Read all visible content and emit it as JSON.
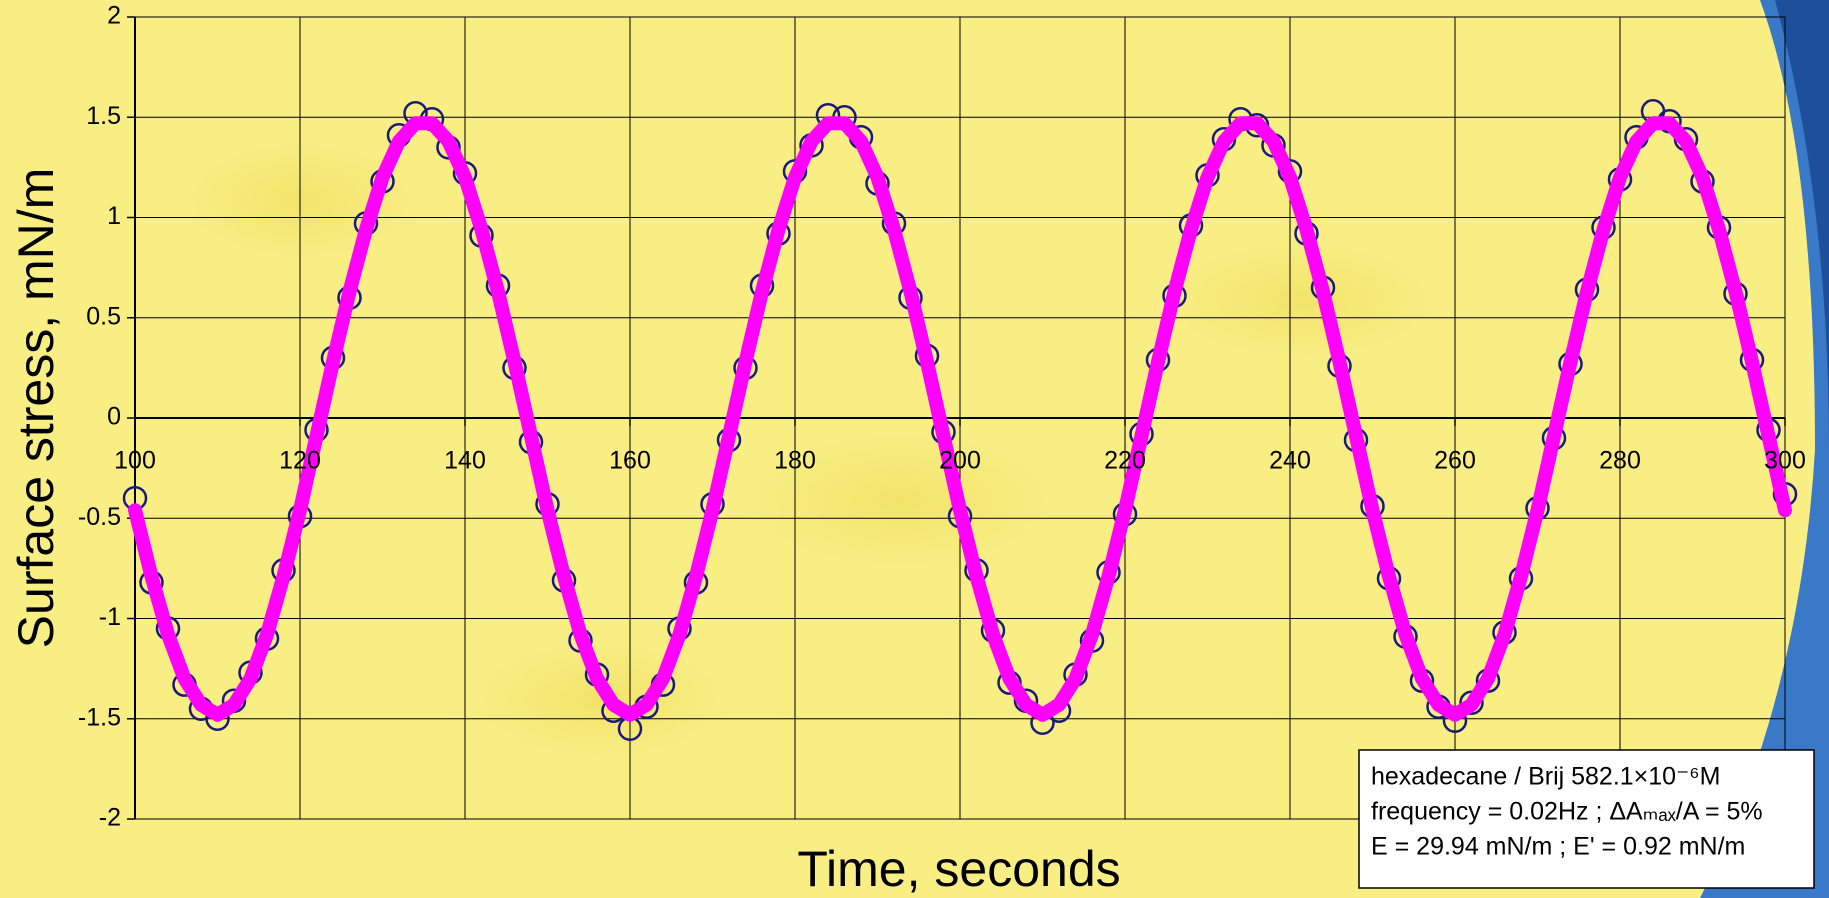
{
  "chart_data": {
    "type": "scatter",
    "x_label": "Time, seconds",
    "y_label": "Surface stress, mN/m",
    "annotations": [
      "hexadecane / Brij 582.1×10⁻⁶M",
      "frequency = 0.02Hz ; ΔAₘₐₓ/A = 5%",
      "E = 29.94 mN/m ; E' = 0.92 mN/m"
    ],
    "x": [
      100,
      102,
      104,
      106,
      108,
      110,
      112,
      114,
      116,
      118,
      120,
      122,
      124,
      126,
      128,
      130,
      132,
      134,
      136,
      138,
      140,
      142,
      144,
      146,
      148,
      150,
      152,
      154,
      156,
      158,
      160,
      162,
      164,
      166,
      168,
      170,
      172,
      174,
      176,
      178,
      180,
      182,
      184,
      186,
      188,
      190,
      192,
      194,
      196,
      198,
      200,
      202,
      204,
      206,
      208,
      210,
      212,
      214,
      216,
      218,
      220,
      222,
      224,
      226,
      228,
      230,
      232,
      234,
      236,
      238,
      240,
      242,
      244,
      246,
      248,
      250,
      252,
      254,
      256,
      258,
      260,
      262,
      264,
      266,
      268,
      270,
      272,
      274,
      276,
      278,
      280,
      282,
      284,
      286,
      288,
      290,
      292,
      294,
      296,
      298,
      300
    ],
    "series": [
      {
        "mode": "markers",
        "color": "#1a1a7a",
        "values": [
          -0.4,
          -0.82,
          -1.05,
          -1.33,
          -1.45,
          -1.5,
          -1.41,
          -1.27,
          -1.1,
          -0.76,
          -0.49,
          -0.06,
          0.3,
          0.6,
          0.97,
          1.18,
          1.41,
          1.52,
          1.49,
          1.35,
          1.22,
          0.91,
          0.66,
          0.25,
          -0.12,
          -0.43,
          -0.81,
          -1.11,
          -1.28,
          -1.46,
          -1.55,
          -1.44,
          -1.33,
          -1.05,
          -0.82,
          -0.43,
          -0.11,
          0.25,
          0.66,
          0.92,
          1.23,
          1.36,
          1.51,
          1.5,
          1.4,
          1.17,
          0.97,
          0.6,
          0.31,
          -0.07,
          -0.49,
          -0.76,
          -1.06,
          -1.32,
          -1.41,
          -1.52,
          -1.46,
          -1.28,
          -1.11,
          -0.77,
          -0.48,
          -0.08,
          0.29,
          0.61,
          0.96,
          1.21,
          1.39,
          1.49,
          1.46,
          1.36,
          1.23,
          0.92,
          0.65,
          0.26,
          -0.11,
          -0.44,
          -0.8,
          -1.09,
          -1.31,
          -1.44,
          -1.51,
          -1.42,
          -1.31,
          -1.07,
          -0.8,
          -0.45,
          -0.1,
          0.27,
          0.64,
          0.95,
          1.19,
          1.4,
          1.53,
          1.48,
          1.39,
          1.18,
          0.95,
          0.62,
          0.29,
          -0.06,
          -0.38
        ]
      },
      {
        "mode": "line",
        "color": "#ff00ff",
        "values": [
          -0.46,
          -0.79,
          -1.08,
          -1.3,
          -1.43,
          -1.48,
          -1.43,
          -1.3,
          -1.08,
          -0.79,
          -0.46,
          -0.09,
          0.28,
          0.63,
          0.94,
          1.2,
          1.38,
          1.47,
          1.47,
          1.38,
          1.2,
          0.94,
          0.63,
          0.28,
          -0.09,
          -0.46,
          -0.79,
          -1.08,
          -1.3,
          -1.43,
          -1.48,
          -1.43,
          -1.3,
          -1.08,
          -0.79,
          -0.46,
          -0.09,
          0.28,
          0.63,
          0.94,
          1.2,
          1.38,
          1.47,
          1.47,
          1.38,
          1.2,
          0.94,
          0.63,
          0.28,
          -0.09,
          -0.46,
          -0.79,
          -1.08,
          -1.3,
          -1.43,
          -1.48,
          -1.43,
          -1.3,
          -1.08,
          -0.79,
          -0.46,
          -0.09,
          0.28,
          0.63,
          0.94,
          1.2,
          1.38,
          1.47,
          1.47,
          1.38,
          1.2,
          0.94,
          0.63,
          0.28,
          -0.09,
          -0.46,
          -0.79,
          -1.08,
          -1.3,
          -1.43,
          -1.48,
          -1.43,
          -1.3,
          -1.08,
          -0.79,
          -0.46,
          -0.09,
          0.28,
          0.63,
          0.94,
          1.2,
          1.38,
          1.47,
          1.47,
          1.38,
          1.2,
          0.94,
          0.63,
          0.28,
          -0.09,
          -0.46
        ]
      }
    ],
    "xlim": [
      100,
      300
    ],
    "ylim": [
      -2,
      2
    ],
    "xticks": [
      100,
      120,
      140,
      160,
      180,
      200,
      220,
      240,
      260,
      280,
      300
    ],
    "yticks": [
      -2,
      -1.5,
      -1,
      -0.5,
      0,
      0.5,
      1,
      1.5,
      2
    ],
    "grid": true
  }
}
